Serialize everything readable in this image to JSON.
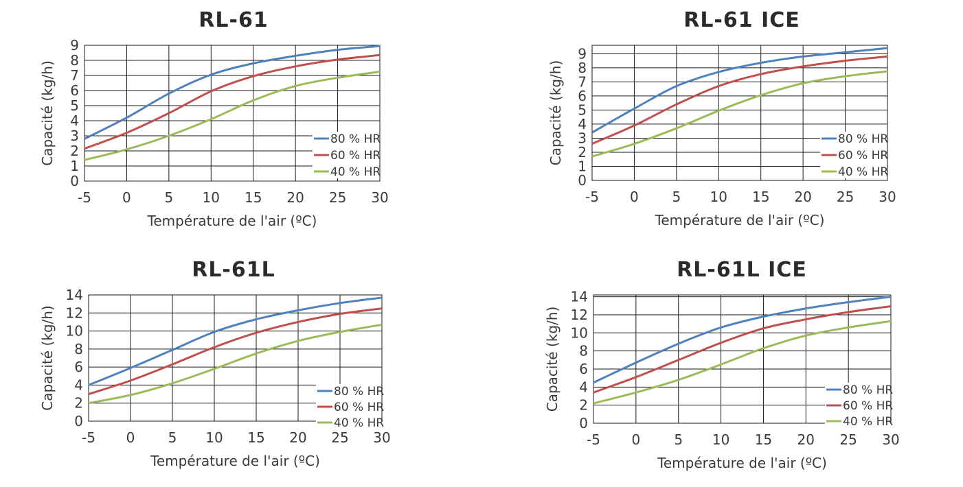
{
  "colors": {
    "80": "#4f81bd",
    "60": "#c0504d",
    "40": "#9bbb59",
    "grid": "#1a1a1a",
    "text": "#3a3a3a"
  },
  "axis_labels": {
    "x": "Température de l'air (ºC)",
    "y": "Capacité (kg/h)"
  },
  "legend_labels": [
    "80 % HR",
    "60 % HR",
    "40 % HR"
  ],
  "chart_data": [
    {
      "type": "line",
      "title": "RL-61",
      "xlabel": "Température de l'air (ºC)",
      "ylabel": "Capacité (kg/h)",
      "x": [
        -5,
        0,
        5,
        10,
        15,
        20,
        25,
        30
      ],
      "xlim": [
        -5,
        30
      ],
      "ylim": [
        0,
        9
      ],
      "yticks": [
        0,
        1,
        2,
        3,
        4,
        5,
        6,
        7,
        8,
        9
      ],
      "legend_placement": "lower-right",
      "grid": true,
      "series": [
        {
          "name": "80 % HR",
          "values": [
            2.8,
            4.2,
            5.8,
            7.05,
            7.8,
            8.3,
            8.7,
            8.95
          ]
        },
        {
          "name": "60 % HR",
          "values": [
            2.15,
            3.2,
            4.5,
            5.95,
            6.95,
            7.6,
            8.05,
            8.35
          ]
        },
        {
          "name": "40 % HR",
          "values": [
            1.4,
            2.1,
            3.0,
            4.1,
            5.35,
            6.3,
            6.85,
            7.25
          ]
        }
      ]
    },
    {
      "type": "line",
      "title": "RL-61 ICE",
      "xlabel": "Température de l'air (ºC)",
      "ylabel": "Capacité (kg/h)",
      "x": [
        -5,
        0,
        5,
        10,
        15,
        20,
        25,
        30
      ],
      "xlim": [
        -5,
        30
      ],
      "ylim": [
        0,
        9.6
      ],
      "yticks": [
        0,
        1,
        2,
        3,
        4,
        5,
        6,
        7,
        8,
        9
      ],
      "legend_placement": "lower-right",
      "grid": true,
      "series": [
        {
          "name": "80 % HR",
          "values": [
            3.4,
            5.1,
            6.7,
            7.7,
            8.35,
            8.8,
            9.1,
            9.4
          ]
        },
        {
          "name": "60 % HR",
          "values": [
            2.6,
            3.9,
            5.4,
            6.7,
            7.55,
            8.1,
            8.5,
            8.8
          ]
        },
        {
          "name": "40 % HR",
          "values": [
            1.7,
            2.6,
            3.7,
            4.95,
            6.05,
            6.9,
            7.4,
            7.75
          ]
        }
      ]
    },
    {
      "type": "line",
      "title": "RL-61L",
      "xlabel": "Température de l'air (ºC)",
      "ylabel": "Capacité (kg/h)",
      "x": [
        -5,
        0,
        5,
        10,
        15,
        20,
        25,
        30
      ],
      "xlim": [
        -5,
        30
      ],
      "ylim": [
        0,
        14
      ],
      "yticks": [
        0,
        2,
        4,
        6,
        8,
        10,
        12,
        14
      ],
      "legend_placement": "lower-right",
      "grid": true,
      "series": [
        {
          "name": "80 % HR",
          "values": [
            4.0,
            5.9,
            7.9,
            9.9,
            11.3,
            12.3,
            13.1,
            13.7
          ]
        },
        {
          "name": "60 % HR",
          "values": [
            3.0,
            4.5,
            6.3,
            8.2,
            9.8,
            11.0,
            11.9,
            12.5
          ]
        },
        {
          "name": "40 % HR",
          "values": [
            2.0,
            2.9,
            4.2,
            5.8,
            7.5,
            8.9,
            9.9,
            10.7
          ]
        }
      ]
    },
    {
      "type": "line",
      "title": "RL-61L ICE",
      "xlabel": "Température de l'air (ºC)",
      "ylabel": "Capacité (kg/h)",
      "x": [
        -5,
        0,
        5,
        10,
        15,
        20,
        25,
        30
      ],
      "xlim": [
        -5,
        30
      ],
      "ylim": [
        0,
        14.2
      ],
      "yticks": [
        0,
        2,
        4,
        6,
        8,
        10,
        12,
        14
      ],
      "legend_placement": "lower-right",
      "grid": true,
      "series": [
        {
          "name": "80 % HR",
          "values": [
            4.5,
            6.7,
            8.8,
            10.6,
            11.8,
            12.7,
            13.4,
            14.0
          ]
        },
        {
          "name": "60 % HR",
          "values": [
            3.4,
            5.1,
            7.0,
            8.9,
            10.5,
            11.5,
            12.3,
            12.95
          ]
        },
        {
          "name": "40 % HR",
          "values": [
            2.2,
            3.4,
            4.8,
            6.5,
            8.3,
            9.7,
            10.6,
            11.3
          ]
        }
      ]
    }
  ]
}
